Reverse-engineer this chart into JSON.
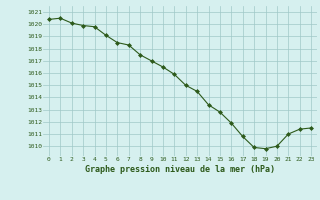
{
  "x": [
    0,
    1,
    2,
    3,
    4,
    5,
    6,
    7,
    8,
    9,
    10,
    11,
    12,
    13,
    14,
    15,
    16,
    17,
    18,
    19,
    20,
    21,
    22,
    23
  ],
  "y": [
    1020.4,
    1020.5,
    1020.1,
    1019.9,
    1019.8,
    1019.1,
    1018.5,
    1018.3,
    1017.5,
    1017.0,
    1016.5,
    1015.9,
    1015.0,
    1014.5,
    1013.4,
    1012.8,
    1011.9,
    1010.8,
    1009.9,
    1009.8,
    1010.0,
    1011.0,
    1011.4,
    1011.5
  ],
  "line_color": "#2d5a1b",
  "marker_color": "#2d5a1b",
  "bg_color": "#d6f0ef",
  "grid_color": "#a0c8c8",
  "xlabel": "Graphe pression niveau de la mer (hPa)",
  "xlabel_color": "#2d5a1b",
  "tick_color": "#2d5a1b",
  "ylim_min": 1009.2,
  "ylim_max": 1021.5,
  "yticks": [
    1010,
    1011,
    1012,
    1013,
    1014,
    1015,
    1016,
    1017,
    1018,
    1019,
    1020,
    1021
  ],
  "xticks": [
    0,
    1,
    2,
    3,
    4,
    5,
    6,
    7,
    8,
    9,
    10,
    11,
    12,
    13,
    14,
    15,
    16,
    17,
    18,
    19,
    20,
    21,
    22,
    23
  ]
}
